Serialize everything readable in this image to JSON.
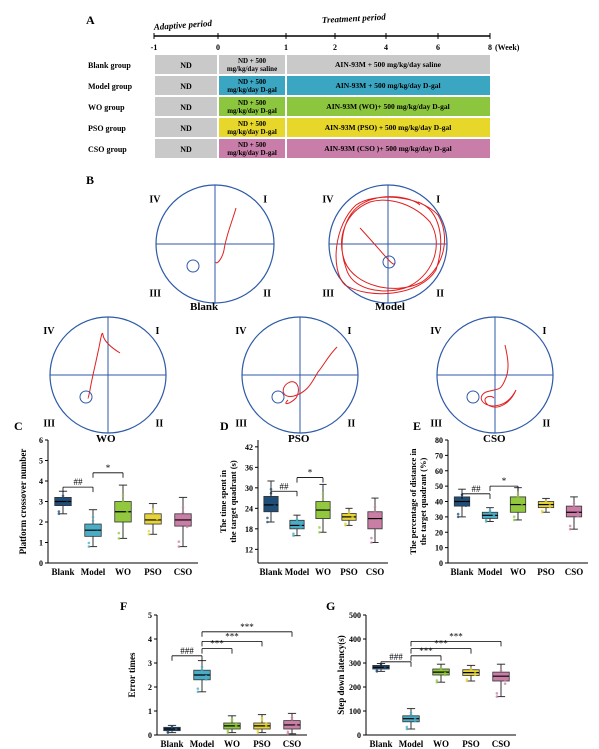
{
  "panel_letters": {
    "a": "A",
    "b": "B",
    "c": "C",
    "d": "D",
    "e": "E",
    "f": "F",
    "g": "G"
  },
  "timeline": {
    "adaptive_label": "Adaptive period",
    "treatment_label": "Treatment period",
    "week_unit": "(Week)",
    "ticks": [
      "-1",
      "0",
      "1",
      "2",
      "4",
      "6",
      "8"
    ]
  },
  "groups": [
    {
      "name": "Blank group",
      "col1": "ND",
      "col2": [
        "ND + 500",
        "mg/kg/day saline"
      ],
      "col3": "AIN-93M + 500 mg/kg/day saline",
      "color": "#c9c9c9"
    },
    {
      "name": "Model group",
      "col1": "ND",
      "col2": [
        "ND + 500",
        "mg/kg/day D-gal"
      ],
      "col3": "AIN-93M + 500 mg/kg/day D-gal",
      "color": "#3aa6c2"
    },
    {
      "name": "WO group",
      "col1": "ND",
      "col2": [
        "ND + 500",
        "mg/kg/day D-gal"
      ],
      "col3": "AIN-93M (WO)+ 500 mg/kg/day D-gal",
      "color": "#8cc63e"
    },
    {
      "name": "PSO group",
      "col1": "ND",
      "col2": [
        "ND + 500",
        "mg/kg/day D-gal"
      ],
      "col3": "AIN-93M (PSO) + 500 mg/kg/day D-gal",
      "color": "#e6d72a"
    },
    {
      "name": "CSO group",
      "col1": "ND",
      "col2": [
        "ND + 500",
        "mg/kg/day D-gal"
      ],
      "col3": "AIN-93M (CSO )+ 500 mg/kg/day D-gal",
      "color": "#c87ea8"
    }
  ],
  "quadrants": [
    "I",
    "II",
    "III",
    "IV"
  ],
  "maze_labels": [
    "Blank",
    "Model",
    "WO",
    "PSO",
    "CSO"
  ],
  "categories": [
    "Blank",
    "Model",
    "WO",
    "PSO",
    "CSO"
  ],
  "box_colors": [
    "#1f4e79",
    "#4bacc6",
    "#92c83e",
    "#e6d33a",
    "#c97ea6"
  ],
  "chart_data": [
    {
      "type": "box",
      "id": "C",
      "ylabel": "Platform crossover number",
      "ylim": [
        0,
        6
      ],
      "yticks": [
        0,
        1,
        2,
        3,
        4,
        5,
        6
      ],
      "categories": [
        "Blank",
        "Model",
        "WO",
        "PSO",
        "CSO"
      ],
      "boxes": [
        {
          "min": 2.4,
          "q1": 2.8,
          "median": 3.0,
          "q3": 3.2,
          "max": 3.5
        },
        {
          "min": 0.8,
          "q1": 1.3,
          "median": 1.6,
          "q3": 1.9,
          "max": 2.6
        },
        {
          "min": 1.2,
          "q1": 2.0,
          "median": 2.5,
          "q3": 3.0,
          "max": 3.8
        },
        {
          "min": 1.4,
          "q1": 1.9,
          "median": 2.1,
          "q3": 2.4,
          "max": 2.9
        },
        {
          "min": 0.8,
          "q1": 1.8,
          "median": 2.1,
          "q3": 2.4,
          "max": 3.2
        }
      ],
      "annotations": [
        {
          "text": "##",
          "from": 0,
          "to": 1,
          "y": 3.7
        },
        {
          "text": "*",
          "from": 1,
          "to": 2,
          "y": 4.4
        }
      ]
    },
    {
      "type": "box",
      "id": "D",
      "ylabel": "The time spent in the target quadrant (s)",
      "ylim": [
        8,
        44
      ],
      "yticks": [
        12,
        18,
        24,
        30,
        36,
        42
      ],
      "categories": [
        "Blank",
        "Model",
        "WO",
        "PSO",
        "CSO"
      ],
      "boxes": [
        {
          "min": 20,
          "q1": 23,
          "median": 25,
          "q3": 27.5,
          "max": 32
        },
        {
          "min": 16,
          "q1": 18,
          "median": 19,
          "q3": 20.5,
          "max": 22
        },
        {
          "min": 17,
          "q1": 21,
          "median": 23.5,
          "q3": 26,
          "max": 31
        },
        {
          "min": 19,
          "q1": 20.5,
          "median": 21.5,
          "q3": 22.5,
          "max": 24
        },
        {
          "min": 14,
          "q1": 18,
          "median": 21,
          "q3": 23,
          "max": 27
        }
      ],
      "annotations": [
        {
          "text": "##",
          "from": 0,
          "to": 1,
          "y": 29
        },
        {
          "text": "*",
          "from": 1,
          "to": 2,
          "y": 33
        }
      ]
    },
    {
      "type": "box",
      "id": "E",
      "ylabel": "The percentage of distance in the target quadrant (%)",
      "ylim": [
        0,
        80
      ],
      "yticks": [
        0,
        10,
        20,
        30,
        40,
        50,
        60,
        70,
        80
      ],
      "categories": [
        "Blank",
        "Model",
        "WO",
        "PSO",
        "CSO"
      ],
      "boxes": [
        {
          "min": 30,
          "q1": 37,
          "median": 40,
          "q3": 43,
          "max": 48
        },
        {
          "min": 27,
          "q1": 29,
          "median": 31,
          "q3": 33,
          "max": 36
        },
        {
          "min": 28,
          "q1": 33,
          "median": 38,
          "q3": 43,
          "max": 49
        },
        {
          "min": 33,
          "q1": 36,
          "median": 38,
          "q3": 40,
          "max": 42
        },
        {
          "min": 22,
          "q1": 30,
          "median": 33,
          "q3": 37,
          "max": 43
        }
      ],
      "annotations": [
        {
          "text": "##",
          "from": 0,
          "to": 1,
          "y": 45
        },
        {
          "text": "*",
          "from": 1,
          "to": 2,
          "y": 50
        }
      ]
    },
    {
      "type": "box",
      "id": "F",
      "ylabel": "Error times",
      "ylim": [
        0,
        5
      ],
      "yticks": [
        0,
        1,
        2,
        3,
        4,
        5
      ],
      "categories": [
        "Blank",
        "Model",
        "WO",
        "PSO",
        "CSO"
      ],
      "boxes": [
        {
          "min": 0.1,
          "q1": 0.18,
          "median": 0.25,
          "q3": 0.32,
          "max": 0.4
        },
        {
          "min": 1.8,
          "q1": 2.3,
          "median": 2.5,
          "q3": 2.7,
          "max": 3.1
        },
        {
          "min": 0.1,
          "q1": 0.25,
          "median": 0.38,
          "q3": 0.5,
          "max": 0.8
        },
        {
          "min": 0.1,
          "q1": 0.25,
          "median": 0.38,
          "q3": 0.5,
          "max": 0.85
        },
        {
          "min": 0.05,
          "q1": 0.25,
          "median": 0.42,
          "q3": 0.6,
          "max": 0.9
        }
      ],
      "annotations": [
        {
          "text": "###",
          "from": 0,
          "to": 1,
          "y": 3.3
        },
        {
          "text": "***",
          "from": 1,
          "to": 2,
          "y": 3.6
        },
        {
          "text": "***",
          "from": 1,
          "to": 3,
          "y": 3.9
        },
        {
          "text": "***",
          "from": 1,
          "to": 4,
          "y": 4.3
        }
      ]
    },
    {
      "type": "box",
      "id": "G",
      "ylabel": "Step down latency(s)",
      "ylim": [
        0,
        500
      ],
      "yticks": [
        0,
        100,
        200,
        300,
        400,
        500
      ],
      "categories": [
        "Blank",
        "Model",
        "WO",
        "PSO",
        "CSO"
      ],
      "boxes": [
        {
          "min": 265,
          "q1": 275,
          "median": 282,
          "q3": 290,
          "max": 298
        },
        {
          "min": 25,
          "q1": 55,
          "median": 68,
          "q3": 80,
          "max": 110
        },
        {
          "min": 220,
          "q1": 250,
          "median": 262,
          "q3": 275,
          "max": 295
        },
        {
          "min": 225,
          "q1": 248,
          "median": 260,
          "q3": 272,
          "max": 290
        },
        {
          "min": 160,
          "q1": 225,
          "median": 245,
          "q3": 262,
          "max": 295
        }
      ],
      "annotations": [
        {
          "text": "###",
          "from": 0,
          "to": 1,
          "y": 305
        },
        {
          "text": "***",
          "from": 1,
          "to": 2,
          "y": 330
        },
        {
          "text": "***",
          "from": 1,
          "to": 3,
          "y": 360
        },
        {
          "text": "***",
          "from": 1,
          "to": 4,
          "y": 390
        }
      ]
    }
  ]
}
